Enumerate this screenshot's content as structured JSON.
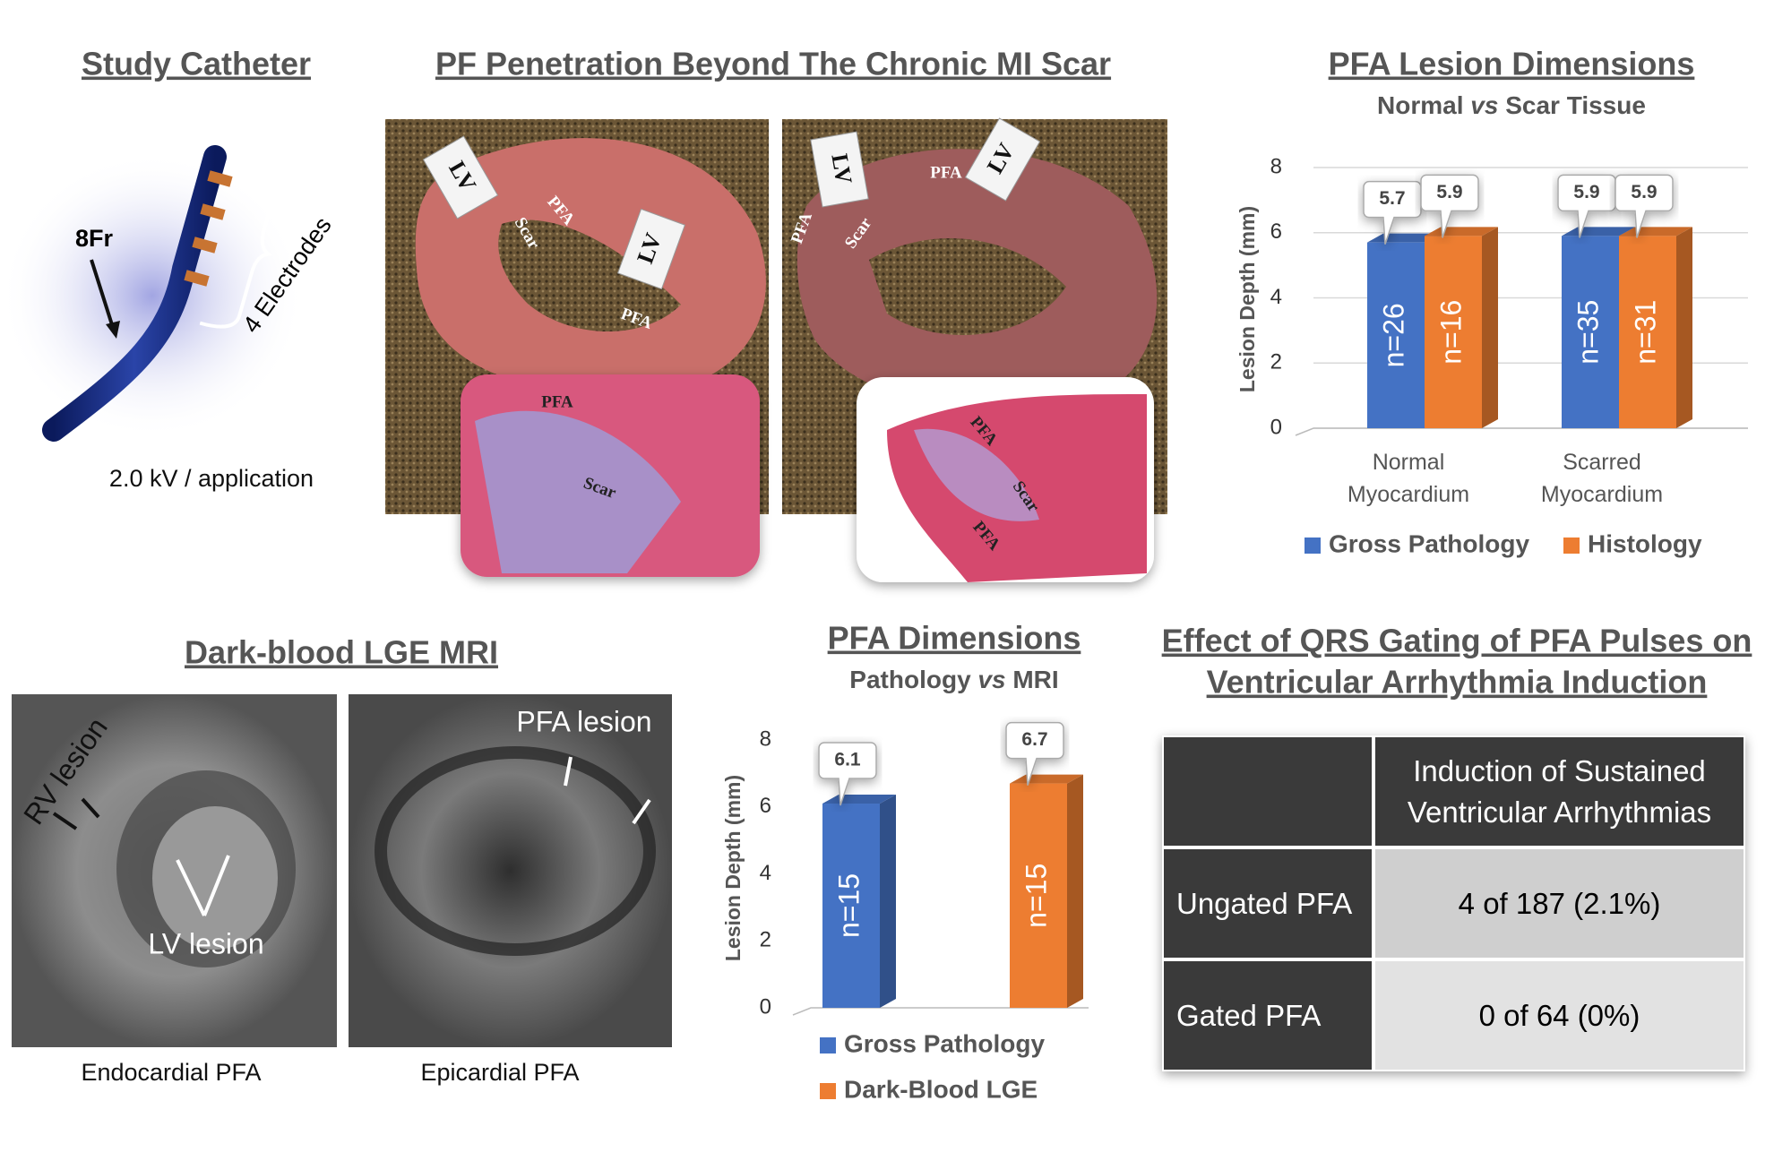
{
  "catheter": {
    "title": "Study Catheter",
    "size_label": "8Fr",
    "electrodes_label": "4 Electrodes",
    "caption": "2.0 kV / application"
  },
  "penetration": {
    "title": "PF Penetration Beyond The Chronic MI Scar",
    "left_photo": [
      "LV",
      "LV",
      "Scar",
      "PFA",
      "PFA"
    ],
    "left_inset": [
      "PFA",
      "Scar"
    ],
    "right_photo": [
      "LV",
      "LV",
      "PFA",
      "PFA",
      "Scar"
    ],
    "right_inset": [
      "PFA",
      "Scar",
      "PFA"
    ]
  },
  "chart_data": [
    {
      "type": "bar",
      "title": "PFA Lesion Dimensions",
      "subtitle": [
        "Normal ",
        "vs",
        " Scar Tissue"
      ],
      "ylabel": "Lesion Depth (mm)",
      "categories": [
        "Normal Myocardium",
        "Scarred Myocardium"
      ],
      "series": [
        {
          "name": "Gross Pathology",
          "color": "#4472c4",
          "values": [
            5.7,
            5.9
          ],
          "n_labels": [
            "n=26",
            "n=35"
          ]
        },
        {
          "name": "Histology",
          "color": "#ed7d31",
          "values": [
            5.9,
            5.9
          ],
          "n_labels": [
            "n=16",
            "n=31"
          ]
        }
      ],
      "ylim": [
        0,
        8
      ],
      "yticks": [
        0,
        2,
        4,
        6,
        8
      ],
      "grid": true
    },
    {
      "type": "bar",
      "title": "PFA Dimensions",
      "subtitle": [
        "Pathology ",
        "vs",
        " MRI"
      ],
      "ylabel": "Lesion Depth (mm)",
      "categories": [
        null
      ],
      "series": [
        {
          "name": "Gross Pathology",
          "color": "#4472c4",
          "values": [
            6.1
          ],
          "n_labels": [
            "n=15"
          ]
        },
        {
          "name": "Dark-Blood LGE",
          "color": "#ed7d31",
          "values": [
            6.7
          ],
          "n_labels": [
            "n=15"
          ]
        }
      ],
      "ylim": [
        0,
        8
      ],
      "yticks": [
        0,
        2,
        4,
        6,
        8
      ],
      "grid": false
    }
  ],
  "mri": {
    "title": "Dark-blood LGE MRI",
    "rv_label": "RV lesion",
    "lv_label": "LV lesion",
    "pfa_label": "PFA lesion",
    "left_caption": "Endocardial PFA",
    "right_caption": "Epicardial PFA"
  },
  "gating": {
    "title_lines": [
      "Effect of QRS Gating of PFA Pulses on",
      "Ventricular Arrhythmia Induction"
    ],
    "table": {
      "header": [
        "Induction of Sustained Ventricular Arrhythmias"
      ],
      "rows": [
        [
          "Ungated PFA",
          "4 of 187 (2.1%)"
        ],
        [
          "Gated PFA",
          "0 of 64 (0%)"
        ]
      ]
    }
  }
}
